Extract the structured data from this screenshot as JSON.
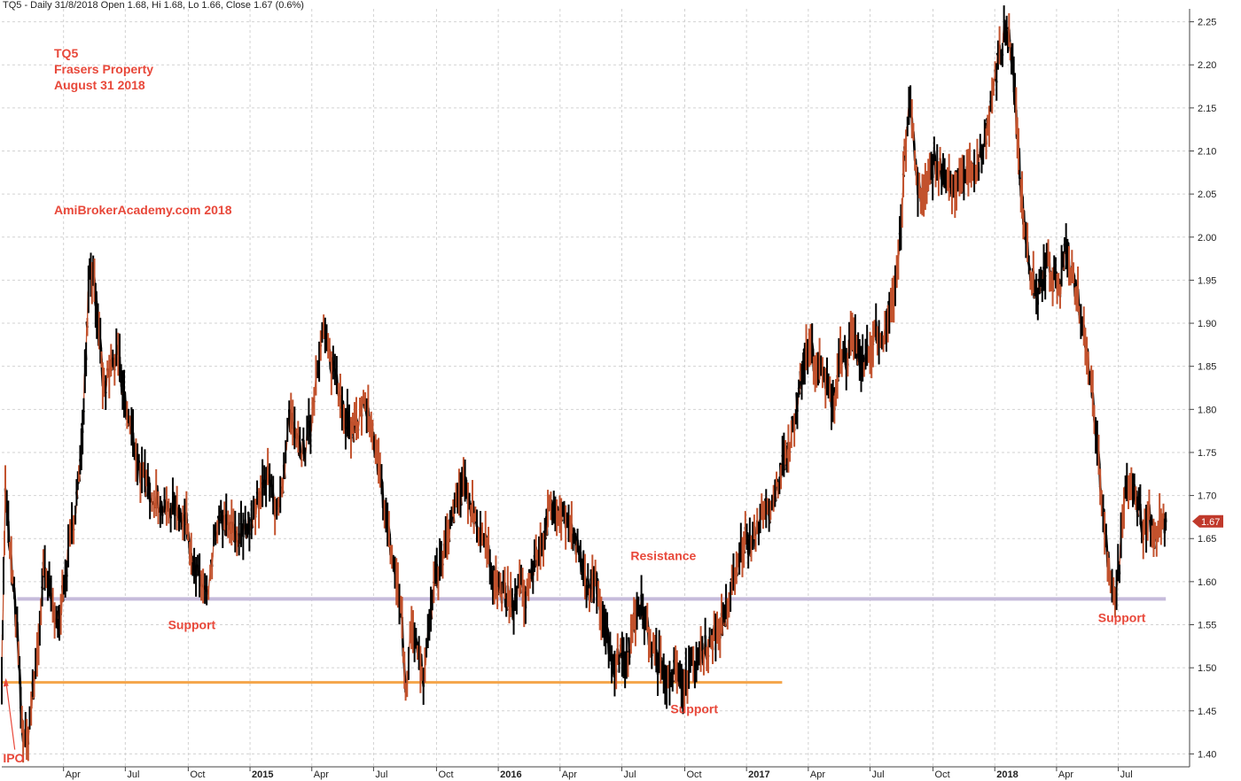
{
  "header": "TQ5 - Daily 31/8/2018 Open 1.68, Hi 1.68, Lo 1.66, Close 1.67 (0.6%)",
  "info": {
    "ticker": "TQ5",
    "name": "Frasers Property",
    "date": "August 31 2018"
  },
  "watermark": "AmiBrokerAcademy.com  2018",
  "last_price_label": "1.67",
  "chart_data": {
    "type": "line",
    "title": "",
    "ylim": [
      1.385,
      2.265
    ],
    "y_ticks": [
      "1.40",
      "1.45",
      "1.50",
      "1.55",
      "1.60",
      "1.65",
      "1.70",
      "1.75",
      "1.80",
      "1.85",
      "1.90",
      "1.95",
      "2.00",
      "2.05",
      "2.10",
      "2.15",
      "2.20",
      "2.25"
    ],
    "x_ticks": [
      {
        "label": "Apr",
        "t": 0.052
      },
      {
        "label": "Jul",
        "t": 0.104
      },
      {
        "label": "Oct",
        "t": 0.157
      },
      {
        "label": "2015",
        "t": 0.209,
        "bold": true
      },
      {
        "label": "Apr",
        "t": 0.261
      },
      {
        "label": "Jul",
        "t": 0.313
      },
      {
        "label": "Oct",
        "t": 0.366
      },
      {
        "label": "2016",
        "t": 0.418,
        "bold": true
      },
      {
        "label": "Apr",
        "t": 0.47
      },
      {
        "label": "Jul",
        "t": 0.522
      },
      {
        "label": "Oct",
        "t": 0.575
      },
      {
        "label": "2017",
        "t": 0.627,
        "bold": true
      },
      {
        "label": "Apr",
        "t": 0.679
      },
      {
        "label": "Jul",
        "t": 0.731
      },
      {
        "label": "Oct",
        "t": 0.784
      },
      {
        "label": "2018",
        "t": 0.836,
        "bold": true
      },
      {
        "label": "Apr",
        "t": 0.888
      },
      {
        "label": "Jul",
        "t": 0.94
      }
    ],
    "series": [
      {
        "points": [
          [
            0.0,
            1.5
          ],
          [
            0.003,
            1.7
          ],
          [
            0.008,
            1.62
          ],
          [
            0.013,
            1.54
          ],
          [
            0.017,
            1.43
          ],
          [
            0.021,
            1.41
          ],
          [
            0.026,
            1.47
          ],
          [
            0.031,
            1.53
          ],
          [
            0.035,
            1.61
          ],
          [
            0.04,
            1.59
          ],
          [
            0.046,
            1.55
          ],
          [
            0.051,
            1.58
          ],
          [
            0.056,
            1.63
          ],
          [
            0.062,
            1.69
          ],
          [
            0.066,
            1.73
          ],
          [
            0.07,
            1.84
          ],
          [
            0.074,
            1.97
          ],
          [
            0.078,
            1.95
          ],
          [
            0.082,
            1.88
          ],
          [
            0.086,
            1.82
          ],
          [
            0.092,
            1.85
          ],
          [
            0.098,
            1.86
          ],
          [
            0.103,
            1.81
          ],
          [
            0.108,
            1.78
          ],
          [
            0.113,
            1.75
          ],
          [
            0.118,
            1.72
          ],
          [
            0.123,
            1.71
          ],
          [
            0.13,
            1.7
          ],
          [
            0.137,
            1.68
          ],
          [
            0.144,
            1.69
          ],
          [
            0.151,
            1.68
          ],
          [
            0.157,
            1.66
          ],
          [
            0.162,
            1.61
          ],
          [
            0.168,
            1.6
          ],
          [
            0.174,
            1.58
          ],
          [
            0.18,
            1.66
          ],
          [
            0.186,
            1.67
          ],
          [
            0.192,
            1.66
          ],
          [
            0.198,
            1.65
          ],
          [
            0.205,
            1.66
          ],
          [
            0.212,
            1.68
          ],
          [
            0.218,
            1.7
          ],
          [
            0.224,
            1.72
          ],
          [
            0.23,
            1.69
          ],
          [
            0.236,
            1.7
          ],
          [
            0.242,
            1.79
          ],
          [
            0.248,
            1.76
          ],
          [
            0.254,
            1.75
          ],
          [
            0.26,
            1.78
          ],
          [
            0.266,
            1.86
          ],
          [
            0.271,
            1.89
          ],
          [
            0.276,
            1.86
          ],
          [
            0.282,
            1.84
          ],
          [
            0.288,
            1.8
          ],
          [
            0.294,
            1.77
          ],
          [
            0.3,
            1.79
          ],
          [
            0.306,
            1.81
          ],
          [
            0.311,
            1.77
          ],
          [
            0.316,
            1.74
          ],
          [
            0.321,
            1.7
          ],
          [
            0.326,
            1.65
          ],
          [
            0.331,
            1.61
          ],
          [
            0.336,
            1.57
          ],
          [
            0.34,
            1.47
          ],
          [
            0.345,
            1.55
          ],
          [
            0.35,
            1.53
          ],
          [
            0.355,
            1.49
          ],
          [
            0.36,
            1.55
          ],
          [
            0.365,
            1.6
          ],
          [
            0.37,
            1.62
          ],
          [
            0.375,
            1.65
          ],
          [
            0.38,
            1.68
          ],
          [
            0.385,
            1.7
          ],
          [
            0.39,
            1.71
          ],
          [
            0.395,
            1.69
          ],
          [
            0.4,
            1.67
          ],
          [
            0.406,
            1.65
          ],
          [
            0.411,
            1.62
          ],
          [
            0.416,
            1.6
          ],
          [
            0.421,
            1.59
          ],
          [
            0.426,
            1.58
          ],
          [
            0.431,
            1.57
          ],
          [
            0.436,
            1.6
          ],
          [
            0.441,
            1.58
          ],
          [
            0.446,
            1.61
          ],
          [
            0.451,
            1.63
          ],
          [
            0.456,
            1.65
          ],
          [
            0.461,
            1.68
          ],
          [
            0.466,
            1.69
          ],
          [
            0.471,
            1.68
          ],
          [
            0.476,
            1.67
          ],
          [
            0.481,
            1.65
          ],
          [
            0.486,
            1.63
          ],
          [
            0.491,
            1.6
          ],
          [
            0.496,
            1.59
          ],
          [
            0.501,
            1.6
          ],
          [
            0.506,
            1.56
          ],
          [
            0.511,
            1.53
          ],
          [
            0.516,
            1.5
          ],
          [
            0.521,
            1.52
          ],
          [
            0.526,
            1.51
          ],
          [
            0.531,
            1.54
          ],
          [
            0.536,
            1.58
          ],
          [
            0.541,
            1.56
          ],
          [
            0.546,
            1.53
          ],
          [
            0.551,
            1.51
          ],
          [
            0.556,
            1.5
          ],
          [
            0.561,
            1.49
          ],
          [
            0.566,
            1.5
          ],
          [
            0.571,
            1.48
          ],
          [
            0.576,
            1.49
          ],
          [
            0.581,
            1.5
          ],
          [
            0.586,
            1.51
          ],
          [
            0.591,
            1.52
          ],
          [
            0.596,
            1.53
          ],
          [
            0.601,
            1.54
          ],
          [
            0.606,
            1.55
          ],
          [
            0.611,
            1.57
          ],
          [
            0.616,
            1.6
          ],
          [
            0.621,
            1.63
          ],
          [
            0.626,
            1.65
          ],
          [
            0.631,
            1.64
          ],
          [
            0.636,
            1.66
          ],
          [
            0.641,
            1.69
          ],
          [
            0.646,
            1.67
          ],
          [
            0.651,
            1.7
          ],
          [
            0.656,
            1.73
          ],
          [
            0.661,
            1.75
          ],
          [
            0.666,
            1.78
          ],
          [
            0.671,
            1.82
          ],
          [
            0.676,
            1.86
          ],
          [
            0.681,
            1.87
          ],
          [
            0.686,
            1.85
          ],
          [
            0.691,
            1.84
          ],
          [
            0.696,
            1.82
          ],
          [
            0.701,
            1.81
          ],
          [
            0.706,
            1.87
          ],
          [
            0.711,
            1.86
          ],
          [
            0.716,
            1.88
          ],
          [
            0.721,
            1.86
          ],
          [
            0.726,
            1.85
          ],
          [
            0.731,
            1.87
          ],
          [
            0.736,
            1.89
          ],
          [
            0.741,
            1.88
          ],
          [
            0.746,
            1.91
          ],
          [
            0.751,
            1.93
          ],
          [
            0.756,
            1.99
          ],
          [
            0.76,
            2.09
          ],
          [
            0.765,
            2.16
          ],
          [
            0.77,
            2.07
          ],
          [
            0.775,
            2.04
          ],
          [
            0.78,
            2.06
          ],
          [
            0.785,
            2.09
          ],
          [
            0.79,
            2.08
          ],
          [
            0.795,
            2.07
          ],
          [
            0.8,
            2.05
          ],
          [
            0.805,
            2.07
          ],
          [
            0.81,
            2.06
          ],
          [
            0.815,
            2.08
          ],
          [
            0.82,
            2.07
          ],
          [
            0.825,
            2.1
          ],
          [
            0.83,
            2.13
          ],
          [
            0.835,
            2.18
          ],
          [
            0.84,
            2.21
          ],
          [
            0.845,
            2.24
          ],
          [
            0.849,
            2.23
          ],
          [
            0.853,
            2.16
          ],
          [
            0.857,
            2.08
          ],
          [
            0.861,
            2.01
          ],
          [
            0.866,
            1.96
          ],
          [
            0.871,
            1.93
          ],
          [
            0.876,
            1.95
          ],
          [
            0.881,
            1.97
          ],
          [
            0.886,
            1.95
          ],
          [
            0.891,
            1.94
          ],
          [
            0.896,
            1.99
          ],
          [
            0.901,
            1.96
          ],
          [
            0.906,
            1.93
          ],
          [
            0.911,
            1.89
          ],
          [
            0.916,
            1.85
          ],
          [
            0.921,
            1.78
          ],
          [
            0.926,
            1.7
          ],
          [
            0.931,
            1.63
          ],
          [
            0.936,
            1.58
          ],
          [
            0.941,
            1.62
          ],
          [
            0.946,
            1.7
          ],
          [
            0.951,
            1.72
          ],
          [
            0.956,
            1.69
          ],
          [
            0.961,
            1.66
          ],
          [
            0.966,
            1.68
          ],
          [
            0.971,
            1.65
          ],
          [
            0.976,
            1.67
          ],
          [
            0.98,
            1.67
          ]
        ]
      }
    ],
    "hlines": [
      {
        "y": 1.58,
        "t0": 0.013,
        "t1": 0.98,
        "color": "#c6bbdb",
        "width": 4
      },
      {
        "y": 1.483,
        "t0": 0.0,
        "t1": 0.657,
        "color": "#f4a54a",
        "width": 3
      }
    ],
    "annotations": [
      {
        "text": "Support",
        "t": 0.16,
        "y": 1.545
      },
      {
        "text": "Resistance",
        "t": 0.557,
        "y": 1.625
      },
      {
        "text": "Support",
        "t": 0.583,
        "y": 1.447
      },
      {
        "text": "Support",
        "t": 0.943,
        "y": 1.553
      },
      {
        "text": "IPO",
        "t": 0.01,
        "y": 1.39
      }
    ],
    "colors": {
      "up": "#c2522d",
      "down": "#000000",
      "grid": "#d2d2d2",
      "last_price_bg": "#c0392b"
    }
  }
}
